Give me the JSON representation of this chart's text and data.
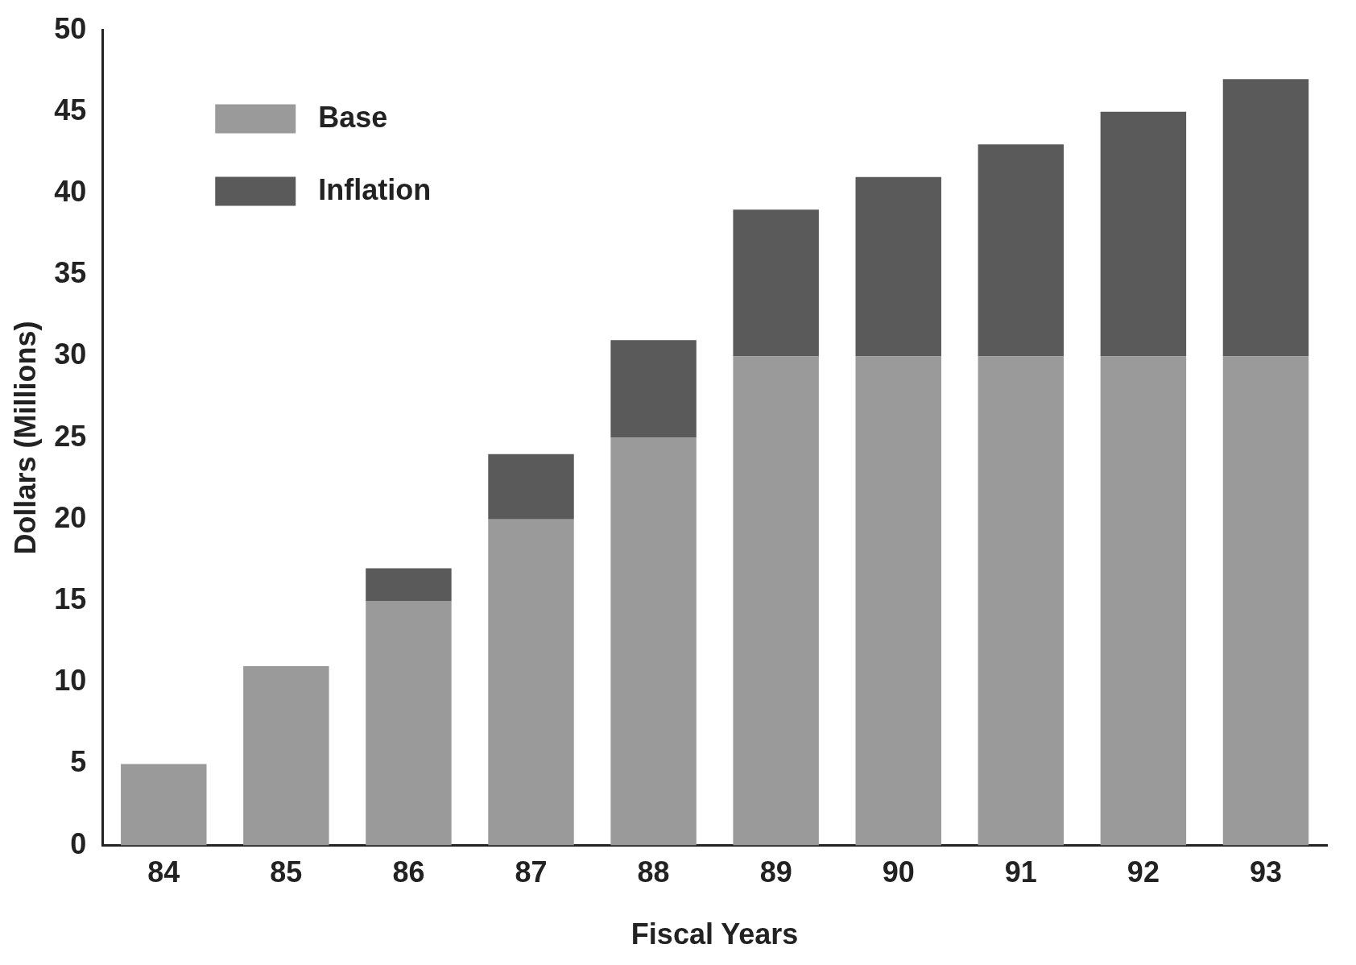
{
  "chart_data": {
    "type": "bar",
    "stacked": true,
    "xlabel": "Fiscal Years",
    "ylabel": "Dollars (Millions)",
    "categories": [
      "84",
      "85",
      "86",
      "87",
      "88",
      "89",
      "90",
      "91",
      "92",
      "93"
    ],
    "series": [
      {
        "name": "Base",
        "color": "#9a9a9a",
        "values": [
          5,
          11,
          15,
          20,
          25,
          30,
          30,
          30,
          30,
          30
        ]
      },
      {
        "name": "Inflation",
        "color": "#5a5a5a",
        "values": [
          0,
          0,
          2,
          4,
          6,
          9,
          11,
          13,
          15,
          17
        ]
      }
    ],
    "ylim": [
      0,
      50
    ],
    "yticks": [
      0,
      5,
      10,
      15,
      20,
      25,
      30,
      35,
      40,
      45,
      50
    ],
    "grid": false,
    "legend": "top left"
  }
}
